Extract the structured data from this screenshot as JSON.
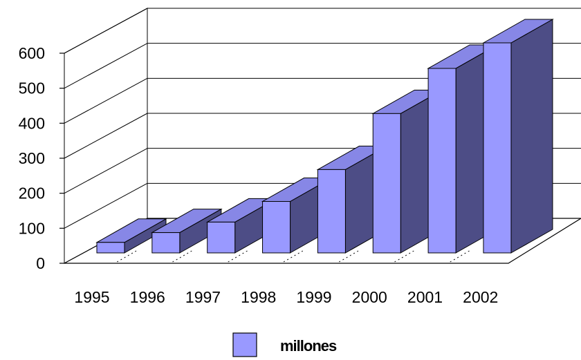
{
  "chart_data": {
    "type": "bar",
    "categories": [
      "1995",
      "1996",
      "1997",
      "1998",
      "1999",
      "2000",
      "2001",
      "2002"
    ],
    "series": [
      {
        "name": "millones",
        "values": [
          30,
          58,
          88,
          147,
          238,
          398,
          527,
          600
        ]
      }
    ],
    "yticks": [
      0,
      100,
      200,
      300,
      400,
      500,
      600
    ],
    "ylim": [
      0,
      600
    ],
    "grid": true,
    "style": "3d",
    "legend_position": "bottom",
    "colors": {
      "front": "#9999ff",
      "side": "#4d4d86",
      "top": "#8787e6",
      "outline": "#000000",
      "grid": "#000000"
    }
  }
}
